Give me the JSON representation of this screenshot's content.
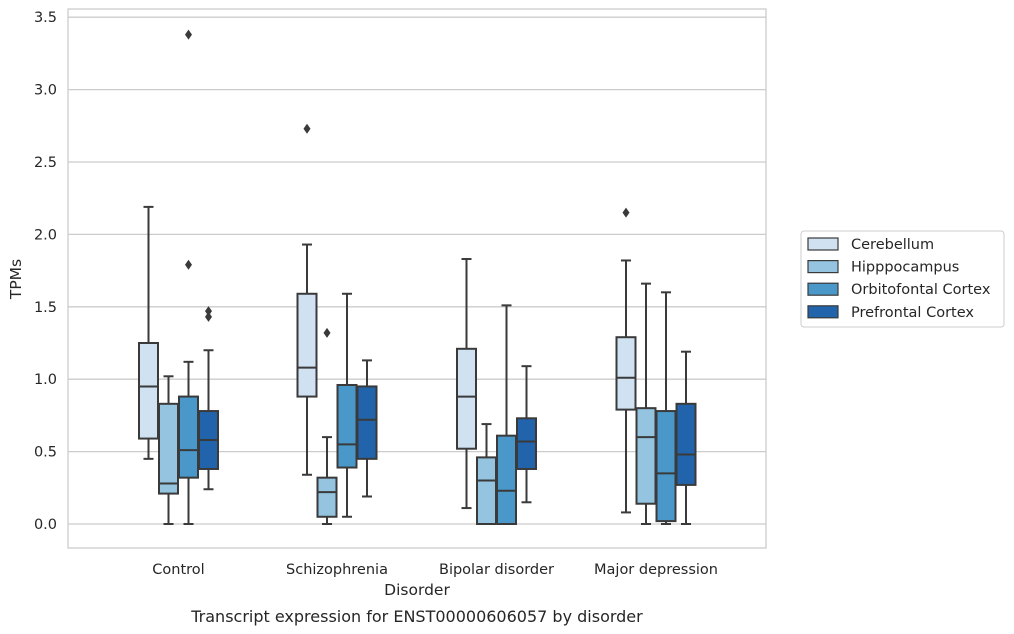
{
  "chart_data": {
    "type": "box",
    "caption": "Transcript expression for ENST00000606057 by disorder",
    "xlabel": "Disorder",
    "ylabel": "TPMs",
    "ylim": [
      -0.16,
      3.56
    ],
    "yticks": [
      "0.0",
      "0.5",
      "1.0",
      "1.5",
      "2.0",
      "2.5",
      "3.0",
      "3.5"
    ],
    "grid": "horizontal",
    "legend_position": "right",
    "categories": [
      "Control",
      "Schizophrenia",
      "Bipolar disorder",
      "Major depression"
    ],
    "series": [
      {
        "name": "Cerebellum",
        "color": "#d0e1f2",
        "boxes": [
          {
            "min": 0.45,
            "q1": 0.59,
            "median": 0.95,
            "q3": 1.25,
            "max": 2.19,
            "outliers": []
          },
          {
            "min": 0.34,
            "q1": 0.88,
            "median": 1.08,
            "q3": 1.59,
            "max": 1.93,
            "outliers": [
              2.73
            ]
          },
          {
            "min": 0.11,
            "q1": 0.52,
            "median": 0.88,
            "q3": 1.21,
            "max": 1.83,
            "outliers": []
          },
          {
            "min": 0.08,
            "q1": 0.79,
            "median": 1.01,
            "q3": 1.29,
            "max": 1.82,
            "outliers": [
              2.15
            ]
          }
        ]
      },
      {
        "name": "Hipppocampus",
        "color": "#94c4df",
        "boxes": [
          {
            "min": 0.0,
            "q1": 0.21,
            "median": 0.28,
            "q3": 0.83,
            "max": 1.02,
            "outliers": []
          },
          {
            "min": 0.0,
            "q1": 0.05,
            "median": 0.22,
            "q3": 0.32,
            "max": 0.6,
            "outliers": [
              1.32
            ]
          },
          {
            "min": 0.0,
            "q1": 0.0,
            "median": 0.3,
            "q3": 0.46,
            "max": 0.69,
            "outliers": []
          },
          {
            "min": 0.0,
            "q1": 0.14,
            "median": 0.6,
            "q3": 0.8,
            "max": 1.66,
            "outliers": []
          }
        ]
      },
      {
        "name": "Orbitofontal Cortex",
        "color": "#4a98c9",
        "boxes": [
          {
            "min": 0.0,
            "q1": 0.32,
            "median": 0.51,
            "q3": 0.88,
            "max": 1.12,
            "outliers": [
              1.79,
              3.38
            ]
          },
          {
            "min": 0.05,
            "q1": 0.39,
            "median": 0.55,
            "q3": 0.96,
            "max": 1.59,
            "outliers": []
          },
          {
            "min": 0.0,
            "q1": 0.0,
            "median": 0.23,
            "q3": 0.61,
            "max": 1.51,
            "outliers": []
          },
          {
            "min": 0.0,
            "q1": 0.02,
            "median": 0.35,
            "q3": 0.78,
            "max": 1.6,
            "outliers": []
          }
        ]
      },
      {
        "name": "Prefrontal Cortex",
        "color": "#2164ab",
        "boxes": [
          {
            "min": 0.24,
            "q1": 0.38,
            "median": 0.58,
            "q3": 0.78,
            "max": 1.2,
            "outliers": [
              1.43,
              1.47
            ]
          },
          {
            "min": 0.19,
            "q1": 0.45,
            "median": 0.72,
            "q3": 0.95,
            "max": 1.13,
            "outliers": []
          },
          {
            "min": 0.15,
            "q1": 0.38,
            "median": 0.57,
            "q3": 0.73,
            "max": 1.09,
            "outliers": []
          },
          {
            "min": 0.0,
            "q1": 0.27,
            "median": 0.48,
            "q3": 0.83,
            "max": 1.19,
            "outliers": []
          }
        ]
      }
    ]
  }
}
